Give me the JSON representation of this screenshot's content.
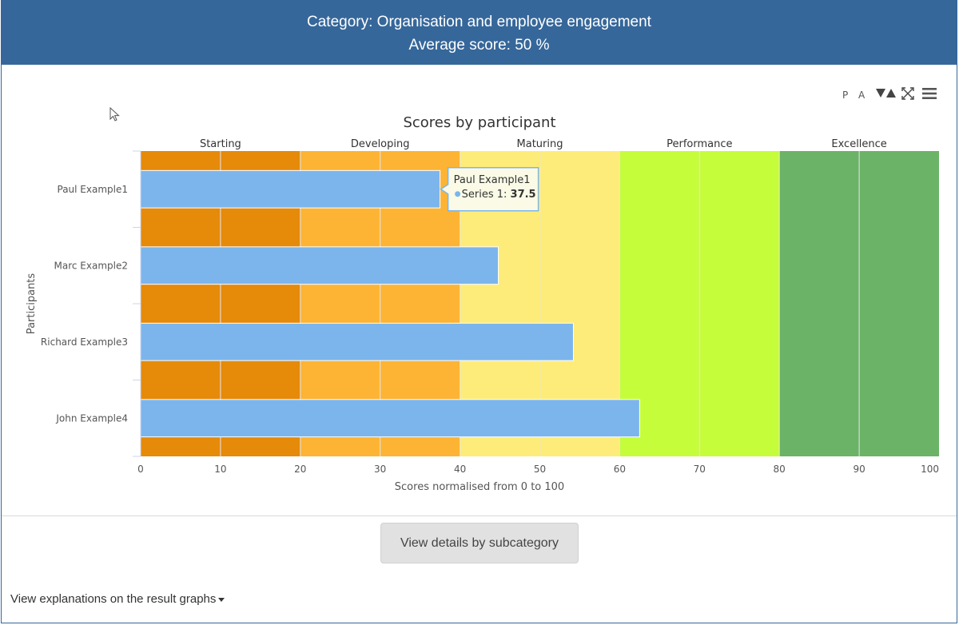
{
  "header": {
    "category_line": "Category: Organisation and employee engagement",
    "score_line": "Average score: 50 %"
  },
  "toolbar": {
    "p_label": "P",
    "a_label": "A",
    "icons": [
      "contrast-icon",
      "fullscreen-icon",
      "menu-icon"
    ]
  },
  "chart_data": {
    "type": "bar",
    "orientation": "horizontal",
    "title": "Scores by participant",
    "xlabel": "Scores normalised from 0 to 100",
    "ylabel": "Participants",
    "xlim": [
      0,
      100
    ],
    "xticks": [
      0,
      10,
      20,
      30,
      40,
      50,
      60,
      70,
      80,
      90,
      100
    ],
    "grid": true,
    "categories": [
      "Paul Example1",
      "Marc Example2",
      "Richard Example3",
      "John Example4"
    ],
    "series": [
      {
        "name": "Series 1",
        "values": [
          37.5,
          44.8,
          54.2,
          62.5
        ],
        "color": "#7cb5ec"
      }
    ],
    "bands": [
      {
        "label": "Starting",
        "from": 0,
        "to": 20,
        "color": "#e68a0a"
      },
      {
        "label": "Developing",
        "from": 20,
        "to": 40,
        "color": "#fdb434"
      },
      {
        "label": "Maturing",
        "from": 40,
        "to": 60,
        "color": "#feec7a"
      },
      {
        "label": "Performance",
        "from": 60,
        "to": 80,
        "color": "#c6fd3a"
      },
      {
        "label": "Excellence",
        "from": 80,
        "to": 100,
        "color": "#6bb367"
      }
    ],
    "tooltip": {
      "title": "Paul Example1",
      "series_label": "Series 1: ",
      "value_label": "37.5"
    }
  },
  "actions": {
    "details_button": "View details by subcategory",
    "explanations_link": "View explanations on the result graphs"
  }
}
